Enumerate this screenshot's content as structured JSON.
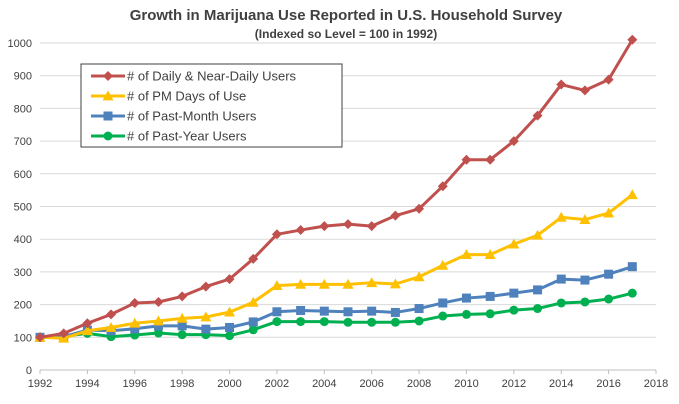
{
  "chart_data": {
    "type": "line",
    "title": "Growth in Marijuana Use Reported in U.S. Household Survey",
    "subtitle": "(Indexed so Level = 100 in 1992)",
    "xlabel": "",
    "ylabel": "",
    "xlim": [
      1992,
      2018
    ],
    "ylim": [
      0,
      1000
    ],
    "x_ticks": [
      1992,
      1994,
      1996,
      1998,
      2000,
      2002,
      2004,
      2006,
      2008,
      2010,
      2012,
      2014,
      2016,
      2018
    ],
    "y_ticks": [
      0,
      100,
      200,
      300,
      400,
      500,
      600,
      700,
      800,
      900,
      1000
    ],
    "grid": true,
    "legend_position": "top-left",
    "x": [
      1992,
      1993,
      1994,
      1995,
      1996,
      1997,
      1998,
      1999,
      2000,
      2001,
      2002,
      2003,
      2004,
      2005,
      2006,
      2007,
      2008,
      2009,
      2010,
      2011,
      2012,
      2013,
      2014,
      2015,
      2016,
      2017
    ],
    "series": [
      {
        "name": "# of Daily & Near-Daily Users",
        "color": "#c0504d",
        "marker": "diamond",
        "values": [
          100,
          112,
          143,
          170,
          205,
          208,
          225,
          255,
          278,
          340,
          415,
          428,
          440,
          446,
          440,
          472,
          493,
          562,
          643,
          643,
          700,
          778,
          873,
          855,
          888,
          1010
        ]
      },
      {
        "name": "# of PM Days of Use",
        "color": "#ffc000",
        "marker": "triangle",
        "values": [
          100,
          97,
          120,
          130,
          143,
          150,
          158,
          162,
          177,
          207,
          258,
          262,
          262,
          262,
          267,
          263,
          285,
          320,
          353,
          353,
          385,
          412,
          467,
          460,
          480,
          536
        ]
      },
      {
        "name": "# of Past-Month Users",
        "color": "#4f81bd",
        "marker": "square",
        "values": [
          100,
          102,
          122,
          120,
          126,
          135,
          135,
          125,
          130,
          147,
          178,
          182,
          180,
          178,
          180,
          176,
          188,
          205,
          220,
          225,
          235,
          245,
          278,
          275,
          293,
          316
        ]
      },
      {
        "name": "# of Past-Year Users",
        "color": "#00b050",
        "marker": "circle",
        "values": [
          100,
          103,
          112,
          102,
          107,
          113,
          108,
          108,
          105,
          123,
          148,
          148,
          148,
          146,
          146,
          146,
          150,
          165,
          170,
          172,
          183,
          188,
          205,
          208,
          217,
          235
        ]
      }
    ]
  }
}
